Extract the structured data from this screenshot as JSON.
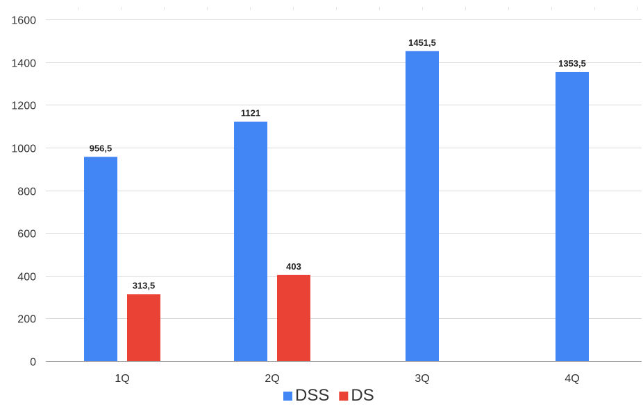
{
  "chart_data": {
    "type": "bar",
    "title": "",
    "xlabel": "",
    "ylabel": "",
    "categories": [
      "1Q",
      "2Q",
      "3Q",
      "4Q"
    ],
    "series": [
      {
        "name": "DSS",
        "color": "#4285F4",
        "values": [
          956.5,
          1121,
          1451.5,
          1353.5
        ],
        "labels": [
          "956,5",
          "1121",
          "1451,5",
          "1353,5"
        ]
      },
      {
        "name": "DS",
        "color": "#EA4335",
        "values": [
          313.5,
          403,
          null,
          null
        ],
        "labels": [
          "313,5",
          "403",
          null,
          null
        ]
      }
    ],
    "ylim": [
      0,
      1600
    ],
    "yticks": [
      0,
      200,
      400,
      600,
      800,
      1000,
      1200,
      1400,
      1600
    ],
    "grid": true,
    "legend_position": "bottom"
  }
}
